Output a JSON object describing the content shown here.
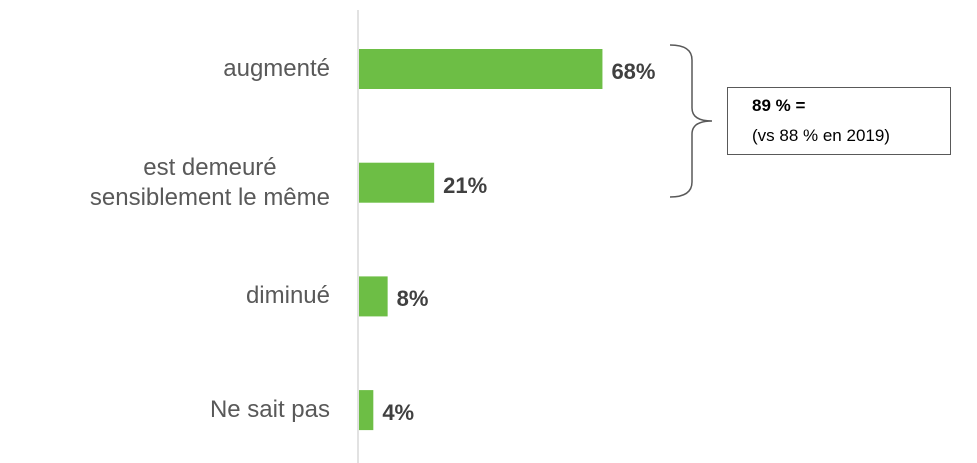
{
  "chart_data": {
    "type": "bar",
    "orientation": "horizontal",
    "categories": [
      "augmenté",
      "est demeuré\nsensiblement le même",
      "diminué",
      "Ne sait pas"
    ],
    "values": [
      68,
      21,
      8,
      4
    ],
    "value_labels": [
      "68%",
      "21%",
      "8%",
      "4%"
    ],
    "color": "#6dbe45",
    "annotation": {
      "title": "89 % =",
      "text": "(vs 88 % en 2019)"
    }
  }
}
